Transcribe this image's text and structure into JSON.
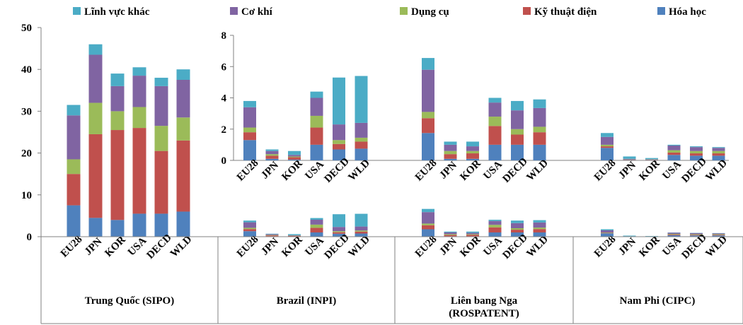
{
  "chart_data": {
    "type": "bar",
    "stacked": true,
    "legend": {
      "placement": "top",
      "entries": [
        "Lĩnh vực khác",
        "Cơ khí",
        "Dụng cụ",
        "Kỹ thuật điện",
        "Hóa học"
      ]
    },
    "series_names": [
      "Hóa học",
      "Kỹ thuật điện",
      "Dụng cụ",
      "Cơ khí",
      "Lĩnh vực khác"
    ],
    "colors": [
      "#4F81BD",
      "#C0504D",
      "#9BBB59",
      "#8064A2",
      "#4BACC6"
    ],
    "categories": [
      "EU28",
      "JPN",
      "KOR",
      "USA",
      "DECD",
      "WLD"
    ],
    "main_axis": {
      "ylim": [
        0,
        50
      ],
      "ticks": [
        "0",
        "10",
        "20",
        "30",
        "40",
        "50"
      ]
    },
    "inset_axis": {
      "ylim": [
        0,
        8
      ],
      "ticks": [
        "0",
        "2",
        "4",
        "6",
        "8"
      ]
    },
    "offices": [
      {
        "name": "Trung Quốc (SIPO)",
        "values": [
          [
            7.5,
            7.5,
            3.5,
            10.5,
            2.5
          ],
          [
            4.5,
            20,
            7.5,
            11.5,
            2.5
          ],
          [
            4,
            21.5,
            4.5,
            6,
            3
          ],
          [
            5.5,
            20.5,
            5,
            7.5,
            2
          ],
          [
            5.5,
            15,
            6,
            9.5,
            2
          ],
          [
            6,
            17,
            5.5,
            9,
            2.5
          ]
        ]
      },
      {
        "name": "Brazil (INPI)",
        "values": [
          [
            1.3,
            0.5,
            0.3,
            1.3,
            0.4
          ],
          [
            0.1,
            0.2,
            0.1,
            0.2,
            0.1
          ],
          [
            0.05,
            0.15,
            0.05,
            0.1,
            0.25
          ],
          [
            1.0,
            1.1,
            0.75,
            1.15,
            0.4
          ],
          [
            0.7,
            0.35,
            0.25,
            1.0,
            3.0
          ],
          [
            0.75,
            0.45,
            0.25,
            0.95,
            3.0
          ]
        ]
      },
      {
        "name": "Liên bang Nga (ROSPATENT)",
        "values": [
          [
            1.75,
            0.95,
            0.4,
            2.7,
            0.75
          ],
          [
            0.1,
            0.3,
            0.2,
            0.4,
            0.2
          ],
          [
            0.1,
            0.35,
            0.15,
            0.3,
            0.3
          ],
          [
            1.0,
            1.2,
            0.6,
            0.9,
            0.3
          ],
          [
            1.0,
            0.65,
            0.35,
            1.2,
            0.6
          ],
          [
            1.0,
            0.8,
            0.35,
            1.2,
            0.55
          ]
        ]
      },
      {
        "name": "Nam Phi (CIPC)",
        "values": [
          [
            0.8,
            0.1,
            0.1,
            0.5,
            0.25
          ],
          [
            0.02,
            0.02,
            0.02,
            0.04,
            0.15
          ],
          [
            0.02,
            0.02,
            0.02,
            0.02,
            0.07
          ],
          [
            0.35,
            0.15,
            0.15,
            0.3,
            0.05
          ],
          [
            0.3,
            0.15,
            0.15,
            0.25,
            0.05
          ],
          [
            0.3,
            0.15,
            0.15,
            0.2,
            0.05
          ]
        ]
      }
    ],
    "office_labels": [
      "Trung Quốc (SIPO)",
      "Brazil (INPI)",
      "Liên bang Nga",
      "(ROSPATENT)",
      "Nam Phi (CIPC)"
    ]
  }
}
